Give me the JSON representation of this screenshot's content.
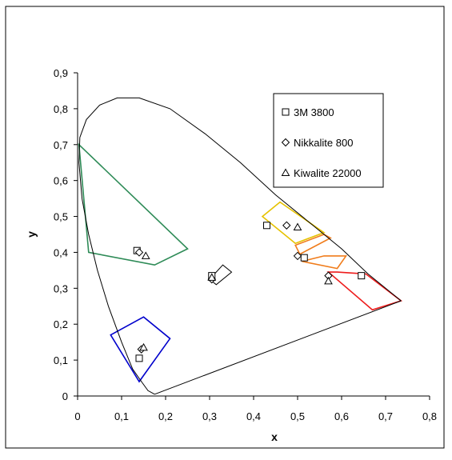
{
  "chart_data": {
    "type": "scatter",
    "xlabel": "x",
    "ylabel": "y",
    "xlim": [
      0,
      0.8
    ],
    "ylim": [
      0,
      0.9
    ],
    "x_ticks": [
      "0",
      "0,1",
      "0,2",
      "0,3",
      "0,4",
      "0,5",
      "0,6",
      "0,7",
      "0,8"
    ],
    "y_ticks": [
      "0",
      "0,1",
      "0,2",
      "0,3",
      "0,4",
      "0,5",
      "0,6",
      "0,7",
      "0,8",
      "0,9"
    ],
    "grid": false,
    "legend_position": "top-right",
    "series": [
      {
        "name": "3M 3800",
        "marker": "square",
        "points": [
          [
            0.43,
            0.475
          ],
          [
            0.515,
            0.385
          ],
          [
            0.645,
            0.335
          ],
          [
            0.135,
            0.405
          ],
          [
            0.305,
            0.335
          ],
          [
            0.14,
            0.105
          ]
        ]
      },
      {
        "name": "Nikkalite 800",
        "marker": "diamond",
        "points": [
          [
            0.475,
            0.475
          ],
          [
            0.5,
            0.39
          ],
          [
            0.57,
            0.335
          ],
          [
            0.14,
            0.4
          ],
          [
            0.305,
            0.325
          ],
          [
            0.145,
            0.13
          ]
        ]
      },
      {
        "name": "Kiwalite 22000",
        "marker": "triangle",
        "points": [
          [
            0.5,
            0.47
          ],
          [
            0.57,
            0.32
          ],
          [
            0.155,
            0.39
          ],
          [
            0.305,
            0.33
          ],
          [
            0.15,
            0.135
          ]
        ]
      }
    ],
    "spectral_locus": [
      [
        0.175,
        0.005
      ],
      [
        0.16,
        0.015
      ],
      [
        0.145,
        0.04
      ],
      [
        0.125,
        0.075
      ],
      [
        0.1,
        0.15
      ],
      [
        0.07,
        0.25
      ],
      [
        0.045,
        0.35
      ],
      [
        0.025,
        0.45
      ],
      [
        0.01,
        0.55
      ],
      [
        0.003,
        0.65
      ],
      [
        0.005,
        0.72
      ],
      [
        0.02,
        0.77
      ],
      [
        0.05,
        0.81
      ],
      [
        0.09,
        0.83
      ],
      [
        0.14,
        0.83
      ],
      [
        0.21,
        0.8
      ],
      [
        0.29,
        0.73
      ],
      [
        0.37,
        0.65
      ],
      [
        0.45,
        0.56
      ],
      [
        0.53,
        0.48
      ],
      [
        0.6,
        0.41
      ],
      [
        0.66,
        0.34
      ],
      [
        0.735,
        0.265
      ]
    ],
    "purple_line": [
      [
        0.735,
        0.265
      ],
      [
        0.175,
        0.005
      ]
    ],
    "color_regions": [
      {
        "color": "#2e8b57",
        "points": [
          [
            0.003,
            0.7
          ],
          [
            0.25,
            0.41
          ],
          [
            0.175,
            0.365
          ],
          [
            0.025,
            0.4
          ]
        ]
      },
      {
        "color": "#0000cc",
        "points": [
          [
            0.075,
            0.17
          ],
          [
            0.15,
            0.22
          ],
          [
            0.21,
            0.16
          ],
          [
            0.14,
            0.04
          ]
        ]
      },
      {
        "color": "#e6c200",
        "points": [
          [
            0.42,
            0.5
          ],
          [
            0.46,
            0.54
          ],
          [
            0.56,
            0.455
          ],
          [
            0.495,
            0.425
          ]
        ]
      },
      {
        "color": "#f07c1b",
        "points": [
          [
            0.495,
            0.42
          ],
          [
            0.56,
            0.45
          ],
          [
            0.575,
            0.44
          ],
          [
            0.505,
            0.395
          ]
        ]
      },
      {
        "color": "#f07c1b",
        "points": [
          [
            0.51,
            0.375
          ],
          [
            0.56,
            0.39
          ],
          [
            0.61,
            0.39
          ],
          [
            0.59,
            0.355
          ]
        ]
      },
      {
        "color": "#ee1c1c",
        "points": [
          [
            0.57,
            0.345
          ],
          [
            0.59,
            0.345
          ],
          [
            0.655,
            0.34
          ],
          [
            0.735,
            0.265
          ],
          [
            0.67,
            0.24
          ]
        ]
      }
    ],
    "white_region": {
      "color": "#000000",
      "points": [
        [
          0.3,
          0.325
        ],
        [
          0.33,
          0.365
        ],
        [
          0.35,
          0.345
        ],
        [
          0.315,
          0.31
        ]
      ]
    }
  }
}
